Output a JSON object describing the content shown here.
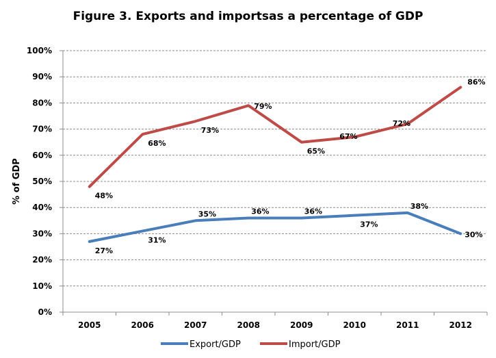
{
  "chart_data": {
    "type": "line",
    "title": "Figure 3. Exports and importsas a percentage of GDP",
    "xlabel": "",
    "ylabel": "% of GDP",
    "categories": [
      "2005",
      "2006",
      "2007",
      "2008",
      "2009",
      "2010",
      "2011",
      "2012"
    ],
    "ylim": [
      0,
      100
    ],
    "yticks": [
      "0%",
      "10%",
      "20%",
      "30%",
      "40%",
      "50%",
      "60%",
      "70%",
      "80%",
      "90%",
      "100%"
    ],
    "grid": "horizontal dashed",
    "legend_position": "bottom",
    "series": [
      {
        "name": "Export/GDP",
        "color": "#4a7ebb",
        "values": [
          27,
          31,
          35,
          36,
          36,
          37,
          38,
          30
        ],
        "labels": [
          "27%",
          "31%",
          "35%",
          "36%",
          "36%",
          "37%",
          "38%",
          "30%"
        ]
      },
      {
        "name": "Import/GDP",
        "color": "#be4b48",
        "values": [
          48,
          68,
          73,
          79,
          65,
          67,
          72,
          86
        ],
        "labels": [
          "48%",
          "68%",
          "73%",
          "79%",
          "65%",
          "67%",
          "72%",
          "86%"
        ]
      }
    ]
  }
}
